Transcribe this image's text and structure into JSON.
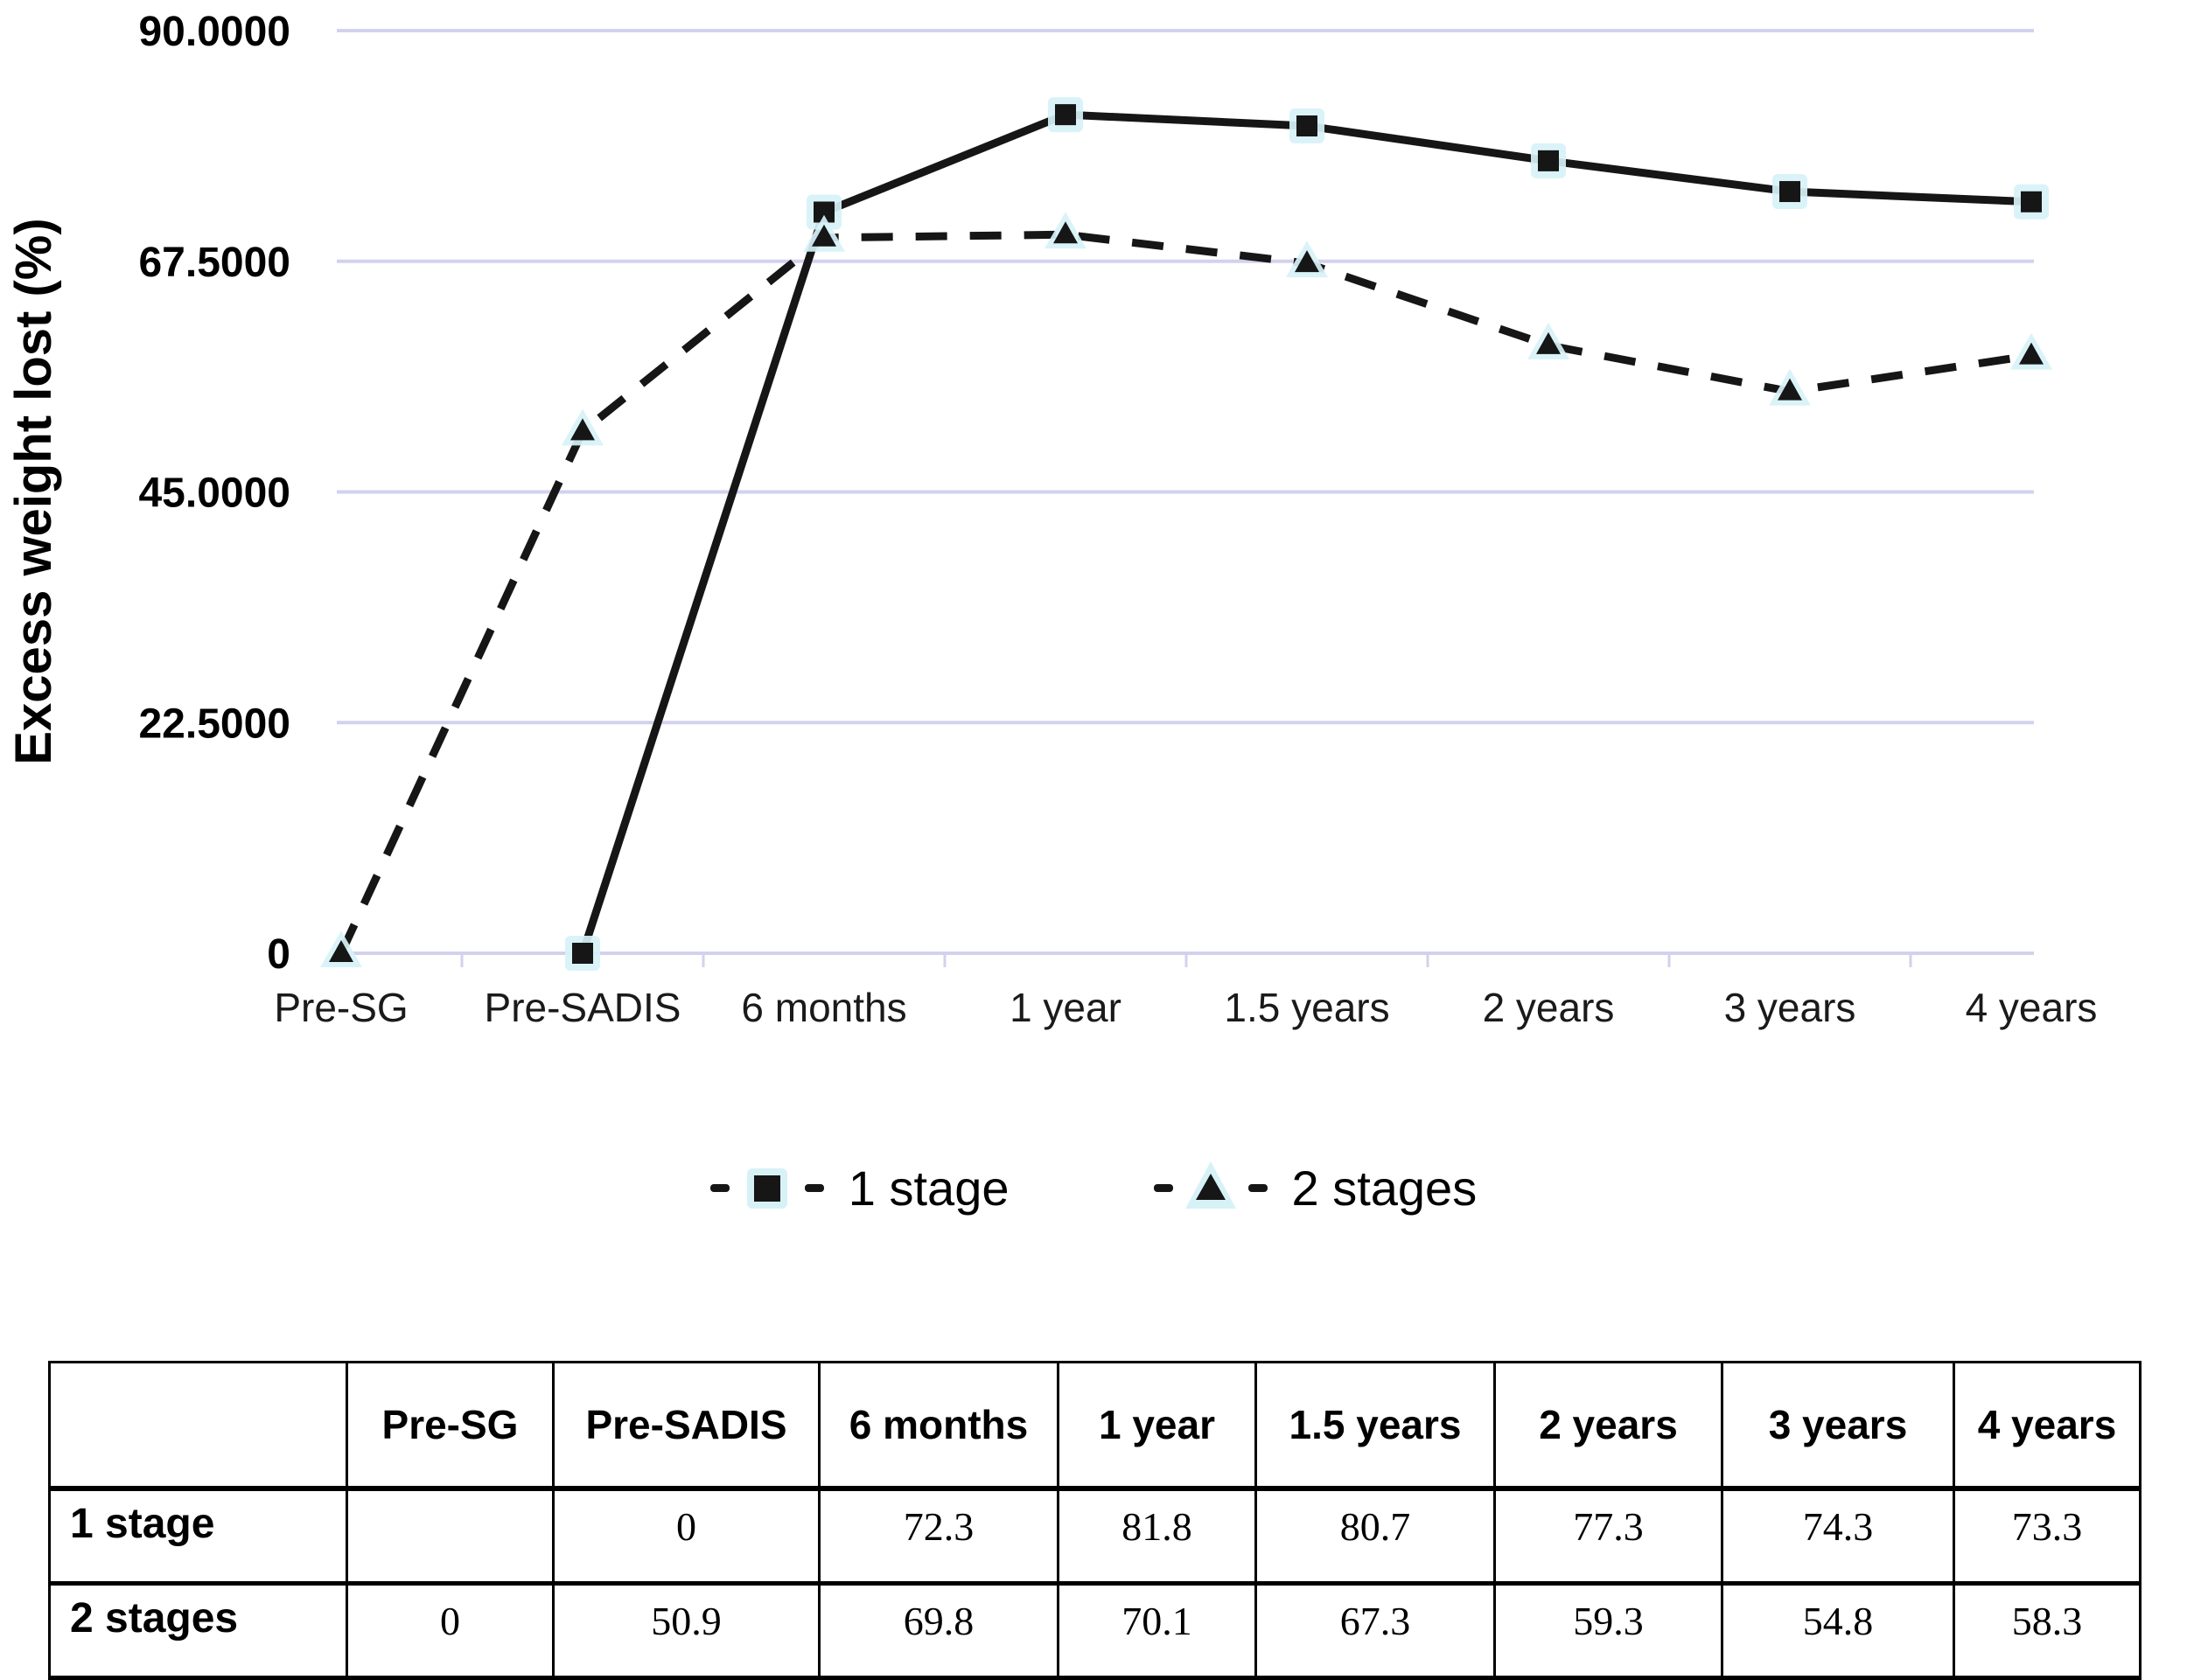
{
  "chart_data": {
    "type": "line",
    "title": "",
    "xlabel": "",
    "ylabel": "Excess weight lost (%)",
    "categories": [
      "Pre-SG",
      "Pre-SADIS",
      "6 months",
      "1 year",
      "1.5 years",
      "2 years",
      "3 years",
      "4 years"
    ],
    "y_ticks": [
      "90.0000",
      "67.5000",
      "45.0000",
      "22.5000",
      "0"
    ],
    "y_tick_values": [
      90,
      67.5,
      45,
      22.5,
      0
    ],
    "ylim": [
      0,
      90
    ],
    "grid": "horizontal",
    "legend_position": "bottom",
    "series": [
      {
        "name": "1 stage",
        "marker": "square",
        "line_style": "solid",
        "values": [
          null,
          0,
          72.3,
          81.8,
          80.7,
          77.3,
          74.3,
          73.3
        ]
      },
      {
        "name": "2 stages",
        "marker": "triangle",
        "line_style": "dashed",
        "values": [
          0,
          50.9,
          69.8,
          70.1,
          67.3,
          59.3,
          54.8,
          58.3
        ]
      }
    ]
  },
  "legend": {
    "items": [
      {
        "label": "1 stage",
        "marker": "square"
      },
      {
        "label": "2 stages",
        "marker": "triangle"
      }
    ]
  },
  "table": {
    "header": [
      "",
      "Pre-SG",
      "Pre-SADIS",
      "6 months",
      "1 year",
      "1.5 years",
      "2 years",
      "3 years",
      "4 years"
    ],
    "rows": [
      {
        "label": "1 stage",
        "values": [
          "",
          "0",
          "72.3",
          "81.8",
          "80.7",
          "77.3",
          "74.3",
          "73.3"
        ]
      },
      {
        "label": "2 stages",
        "values": [
          "0",
          "50.9",
          "69.8",
          "70.1",
          "67.3",
          "59.3",
          "54.8",
          "58.3"
        ]
      }
    ]
  },
  "colors": {
    "line": "#161616",
    "gridline": "#d2d2ee",
    "marker_halo": "#d7f2f7",
    "text": "#000000",
    "table_border": "#000000",
    "background": "#ffffff"
  }
}
